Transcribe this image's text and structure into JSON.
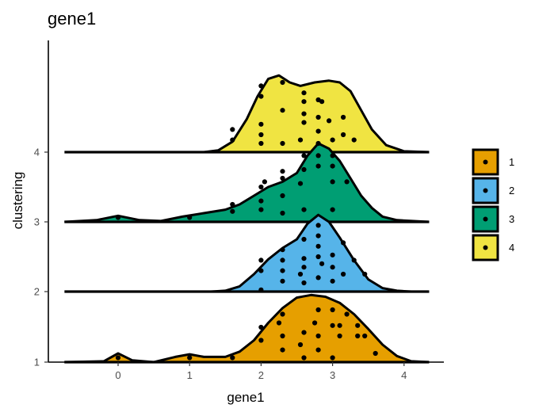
{
  "chart_data": {
    "type": "ridgeline",
    "title": "gene1",
    "xlabel": "gene1",
    "ylabel": "clustering",
    "xlim": [
      -0.75,
      4.35
    ],
    "x_ticks": [
      0,
      1,
      2,
      3,
      4
    ],
    "y_categories": [
      "1",
      "2",
      "3",
      "4"
    ],
    "legend": {
      "position": "right",
      "entries": [
        {
          "label": "1",
          "color": "#E69F00"
        },
        {
          "label": "2",
          "color": "#56B4E9"
        },
        {
          "label": "3",
          "color": "#009E73"
        },
        {
          "label": "4",
          "color": "#F0E442"
        }
      ]
    },
    "series": [
      {
        "name": "1",
        "color": "#E69F00",
        "density": [
          [
            -0.75,
            0
          ],
          [
            -0.2,
            0.01
          ],
          [
            0,
            0.1
          ],
          [
            0.2,
            0.02
          ],
          [
            0.5,
            0
          ],
          [
            0.8,
            0.06
          ],
          [
            1.0,
            0.09
          ],
          [
            1.2,
            0.06
          ],
          [
            1.5,
            0.06
          ],
          [
            1.7,
            0.12
          ],
          [
            1.9,
            0.25
          ],
          [
            2.1,
            0.45
          ],
          [
            2.3,
            0.62
          ],
          [
            2.5,
            0.74
          ],
          [
            2.7,
            0.77
          ],
          [
            2.9,
            0.75
          ],
          [
            3.1,
            0.68
          ],
          [
            3.3,
            0.55
          ],
          [
            3.5,
            0.38
          ],
          [
            3.7,
            0.2
          ],
          [
            3.9,
            0.07
          ],
          [
            4.1,
            0.01
          ],
          [
            4.35,
            0
          ]
        ],
        "points": [
          [
            0,
            0.05
          ],
          [
            1,
            0.05
          ],
          [
            1.6,
            0.05
          ],
          [
            2.0,
            0.4
          ],
          [
            2.0,
            0.25
          ],
          [
            2.25,
            0.45
          ],
          [
            2.3,
            0.14
          ],
          [
            2.3,
            0.3
          ],
          [
            2.3,
            0.55
          ],
          [
            2.55,
            0.2
          ],
          [
            2.6,
            0.34
          ],
          [
            2.6,
            0.05
          ],
          [
            2.75,
            0.45
          ],
          [
            2.8,
            0.14
          ],
          [
            2.8,
            0.3
          ],
          [
            2.8,
            0.6
          ],
          [
            3.0,
            0.42
          ],
          [
            3.0,
            0.6
          ],
          [
            3.0,
            0.05
          ],
          [
            3.1,
            0.42
          ],
          [
            3.1,
            0.3
          ],
          [
            3.2,
            0.55
          ],
          [
            3.35,
            0.3
          ],
          [
            3.35,
            0.42
          ],
          [
            3.45,
            0.3
          ],
          [
            3.6,
            0.1
          ]
        ]
      },
      {
        "name": "2",
        "color": "#56B4E9",
        "density": [
          [
            1.3,
            0
          ],
          [
            1.5,
            0.01
          ],
          [
            1.7,
            0.06
          ],
          [
            1.9,
            0.2
          ],
          [
            2.1,
            0.37
          ],
          [
            2.3,
            0.5
          ],
          [
            2.5,
            0.6
          ],
          [
            2.65,
            0.78
          ],
          [
            2.8,
            0.88
          ],
          [
            2.95,
            0.8
          ],
          [
            3.1,
            0.62
          ],
          [
            3.3,
            0.36
          ],
          [
            3.5,
            0.14
          ],
          [
            3.7,
            0.04
          ],
          [
            3.9,
            0.01
          ],
          [
            4.1,
            0
          ],
          [
            4.35,
            0
          ]
        ],
        "points": [
          [
            2.0,
            0.36
          ],
          [
            2.0,
            0.24
          ],
          [
            2.0,
            0.02
          ],
          [
            2.3,
            0.12
          ],
          [
            2.3,
            0.24
          ],
          [
            2.3,
            0.36
          ],
          [
            2.3,
            0.48
          ],
          [
            2.55,
            0.2
          ],
          [
            2.6,
            0.6
          ],
          [
            2.6,
            0.38
          ],
          [
            2.6,
            0.28
          ],
          [
            2.6,
            0.1
          ],
          [
            2.8,
            0.76
          ],
          [
            2.8,
            0.64
          ],
          [
            2.8,
            0.52
          ],
          [
            2.8,
            0.4
          ],
          [
            2.8,
            0.16
          ],
          [
            2.85,
            0.32
          ],
          [
            3.0,
            0.42
          ],
          [
            3.0,
            0.28
          ],
          [
            3.0,
            0.12
          ],
          [
            3.15,
            0.56
          ],
          [
            3.15,
            0.2
          ],
          [
            3.3,
            0.36
          ],
          [
            3.45,
            0.2
          ]
        ]
      },
      {
        "name": "3",
        "color": "#009E73",
        "density": [
          [
            -0.75,
            0
          ],
          [
            -0.3,
            0.02
          ],
          [
            0,
            0.07
          ],
          [
            0.3,
            0.02
          ],
          [
            0.6,
            0.01
          ],
          [
            0.9,
            0.06
          ],
          [
            1.2,
            0.1
          ],
          [
            1.5,
            0.14
          ],
          [
            1.7,
            0.2
          ],
          [
            1.9,
            0.3
          ],
          [
            2.1,
            0.4
          ],
          [
            2.3,
            0.46
          ],
          [
            2.5,
            0.56
          ],
          [
            2.65,
            0.76
          ],
          [
            2.8,
            0.9
          ],
          [
            2.95,
            0.84
          ],
          [
            3.1,
            0.7
          ],
          [
            3.25,
            0.5
          ],
          [
            3.4,
            0.3
          ],
          [
            3.55,
            0.16
          ],
          [
            3.7,
            0.06
          ],
          [
            3.9,
            0.02
          ],
          [
            4.35,
            0
          ]
        ],
        "points": [
          [
            0,
            0.05
          ],
          [
            1,
            0.05
          ],
          [
            1.6,
            0.12
          ],
          [
            1.6,
            0.2
          ],
          [
            2.0,
            0.14
          ],
          [
            2.0,
            0.24
          ],
          [
            2.0,
            0.4
          ],
          [
            2.05,
            0.46
          ],
          [
            2.3,
            0.1
          ],
          [
            2.3,
            0.3
          ],
          [
            2.3,
            0.5
          ],
          [
            2.3,
            0.58
          ],
          [
            2.55,
            0.44
          ],
          [
            2.6,
            0.14
          ],
          [
            2.6,
            0.6
          ],
          [
            2.6,
            0.76
          ],
          [
            2.8,
            0.9
          ],
          [
            2.8,
            0.76
          ],
          [
            2.8,
            0.64
          ],
          [
            3.0,
            0.76
          ],
          [
            3.0,
            0.64
          ],
          [
            3.0,
            0.46
          ],
          [
            3.0,
            0.14
          ],
          [
            3.2,
            0.46
          ]
        ]
      },
      {
        "name": "4",
        "color": "#F0E442",
        "density": [
          [
            1.2,
            0
          ],
          [
            1.4,
            0.02
          ],
          [
            1.6,
            0.12
          ],
          [
            1.8,
            0.38
          ],
          [
            1.95,
            0.64
          ],
          [
            2.1,
            0.84
          ],
          [
            2.25,
            0.88
          ],
          [
            2.4,
            0.8
          ],
          [
            2.55,
            0.76
          ],
          [
            2.75,
            0.8
          ],
          [
            2.95,
            0.82
          ],
          [
            3.1,
            0.8
          ],
          [
            3.25,
            0.7
          ],
          [
            3.4,
            0.48
          ],
          [
            3.55,
            0.26
          ],
          [
            3.75,
            0.08
          ],
          [
            4.0,
            0.01
          ],
          [
            4.35,
            0
          ]
        ],
        "points": [
          [
            1.6,
            0.14
          ],
          [
            1.6,
            0.26
          ],
          [
            2.0,
            0.1
          ],
          [
            2.0,
            0.2
          ],
          [
            2.0,
            0.32
          ],
          [
            2.0,
            0.64
          ],
          [
            2.0,
            0.76
          ],
          [
            2.3,
            0.1
          ],
          [
            2.3,
            0.48
          ],
          [
            2.3,
            0.8
          ],
          [
            2.55,
            0.14
          ],
          [
            2.6,
            0.34
          ],
          [
            2.6,
            0.44
          ],
          [
            2.6,
            0.58
          ],
          [
            2.6,
            0.68
          ],
          [
            2.8,
            0.24
          ],
          [
            2.8,
            0.4
          ],
          [
            2.8,
            0.6
          ],
          [
            2.85,
            0.58
          ],
          [
            2.95,
            0.36
          ],
          [
            3.0,
            0.14
          ],
          [
            3.15,
            0.2
          ],
          [
            3.15,
            0.4
          ],
          [
            3.3,
            0.14
          ]
        ]
      }
    ]
  }
}
